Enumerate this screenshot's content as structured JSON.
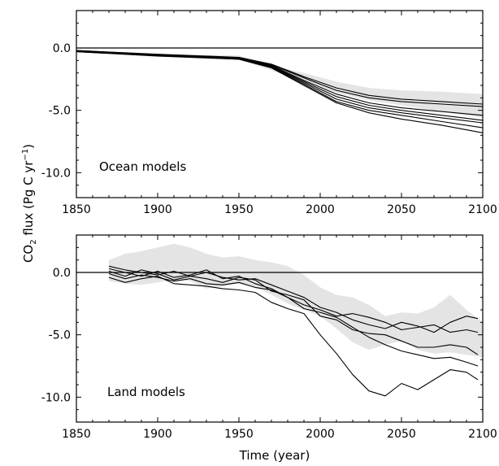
{
  "figure": {
    "ylabel_main": "CO",
    "ylabel_sub": "2",
    "ylabel_rest": " flux  (Pg C yr",
    "ylabel_sup": "−1",
    "ylabel_close": ")",
    "xlabel": "Time  (year)"
  },
  "colors": {
    "line": "#000000",
    "band": "#e4e4e4",
    "frame": "#000000"
  },
  "chart_data": [
    {
      "type": "line",
      "title": "",
      "annotation": "Ocean models",
      "xlabel": "",
      "ylabel": "",
      "xlim": [
        1850,
        2100
      ],
      "ylim": [
        -12,
        3
      ],
      "x_ticks": [
        1850,
        1900,
        1950,
        2000,
        2050,
        2100
      ],
      "y_ticks": [
        0.0,
        -5.0,
        -10.0
      ],
      "y_tick_labels": [
        "0.0",
        "-5.0",
        "-10.0"
      ],
      "reference_line": 0,
      "grid": false,
      "band": {
        "x": [
          1850,
          1900,
          1950,
          1970,
          1990,
          2010,
          2030,
          2050,
          2075,
          2100
        ],
        "upper": [
          -0.2,
          -0.5,
          -0.6,
          -1.4,
          -2.0,
          -2.7,
          -3.2,
          -3.4,
          -3.5,
          -3.7
        ],
        "lower": [
          -0.3,
          -0.7,
          -0.9,
          -1.8,
          -2.7,
          -3.6,
          -4.2,
          -4.6,
          -5.1,
          -5.6
        ]
      },
      "series": [
        {
          "x": [
            1850,
            1900,
            1950,
            1970,
            1990,
            2010,
            2030,
            2050,
            2075,
            2100
          ],
          "values": [
            -0.2,
            -0.5,
            -0.75,
            -1.3,
            -2.3,
            -3.2,
            -3.8,
            -4.1,
            -4.3,
            -4.5
          ]
        },
        {
          "x": [
            1850,
            1900,
            1950,
            1970,
            1990,
            2010,
            2030,
            2050,
            2075,
            2100
          ],
          "values": [
            -0.2,
            -0.55,
            -0.8,
            -1.35,
            -2.4,
            -3.4,
            -4.0,
            -4.3,
            -4.5,
            -4.7
          ]
        },
        {
          "x": [
            1850,
            1900,
            1950,
            1970,
            1990,
            2010,
            2030,
            2050,
            2075,
            2100
          ],
          "values": [
            -0.25,
            -0.55,
            -0.8,
            -1.4,
            -2.6,
            -3.7,
            -4.4,
            -4.8,
            -5.1,
            -5.4
          ]
        },
        {
          "x": [
            1850,
            1900,
            1950,
            1970,
            1990,
            2010,
            2030,
            2050,
            2075,
            2100
          ],
          "values": [
            -0.25,
            -0.55,
            -0.85,
            -1.45,
            -2.7,
            -3.9,
            -4.6,
            -5.0,
            -5.4,
            -5.8
          ]
        },
        {
          "x": [
            1850,
            1900,
            1950,
            1970,
            1990,
            2010,
            2030,
            2050,
            2075,
            2100
          ],
          "values": [
            -0.25,
            -0.6,
            -0.85,
            -1.5,
            -2.8,
            -4.1,
            -4.8,
            -5.2,
            -5.6,
            -6.0
          ]
        },
        {
          "x": [
            1850,
            1900,
            1950,
            1970,
            1990,
            2010,
            2030,
            2050,
            2075,
            2100
          ],
          "values": [
            -0.3,
            -0.6,
            -0.9,
            -1.55,
            -2.9,
            -4.3,
            -5.0,
            -5.4,
            -5.9,
            -6.4
          ]
        },
        {
          "x": [
            1850,
            1900,
            1950,
            1970,
            1990,
            2010,
            2030,
            2050,
            2075,
            2100
          ],
          "values": [
            -0.3,
            -0.65,
            -0.9,
            -1.6,
            -3.0,
            -4.4,
            -5.2,
            -5.7,
            -6.2,
            -6.8
          ]
        }
      ]
    },
    {
      "type": "line",
      "title": "",
      "annotation": "Land models",
      "xlabel": "Time  (year)",
      "ylabel": "",
      "xlim": [
        1850,
        2100
      ],
      "ylim": [
        -12,
        3
      ],
      "x_ticks": [
        1850,
        1900,
        1950,
        2000,
        2050,
        2100
      ],
      "y_ticks": [
        0.0,
        -5.0,
        -10.0
      ],
      "y_tick_labels": [
        "0.0",
        "-5.0",
        "-10.0"
      ],
      "reference_line": 0,
      "grid": false,
      "band": {
        "x": [
          1870,
          1880,
          1890,
          1900,
          1910,
          1920,
          1930,
          1940,
          1950,
          1960,
          1970,
          1980,
          1990,
          2000,
          2010,
          2020,
          2030,
          2040,
          2050,
          2060,
          2070,
          2080,
          2090,
          2100
        ],
        "upper": [
          1.0,
          1.5,
          1.7,
          2.0,
          2.3,
          2.0,
          1.5,
          1.2,
          1.3,
          1.0,
          0.8,
          0.5,
          -0.2,
          -1.2,
          -1.8,
          -2.0,
          -2.6,
          -3.5,
          -3.2,
          -3.3,
          -2.8,
          -1.8,
          -3.0,
          -4.0
        ],
        "lower": [
          -0.7,
          -0.9,
          -1.0,
          -0.8,
          -0.6,
          -0.7,
          -1.3,
          -1.1,
          -0.9,
          -1.2,
          -1.8,
          -2.5,
          -3.0,
          -3.5,
          -4.5,
          -5.6,
          -6.2,
          -5.8,
          -5.5,
          -6.2,
          -6.5,
          -6.4,
          -6.6,
          -6.8
        ]
      },
      "series": [
        {
          "x": [
            1870,
            1880,
            1890,
            1900,
            1910,
            1920,
            1930,
            1940,
            1950,
            1960,
            1970,
            1980,
            1990,
            2000,
            2010,
            2020,
            2030,
            2040,
            2050,
            2060,
            2070,
            2080,
            2090,
            2097
          ],
          "values": [
            0.5,
            0.2,
            0.0,
            -0.2,
            0.1,
            -0.3,
            0.0,
            -0.4,
            -0.6,
            -0.5,
            -1.0,
            -1.5,
            -2.0,
            -2.8,
            -3.2,
            -3.8,
            -4.2,
            -4.5,
            -4.0,
            -4.3,
            -4.8,
            -4.0,
            -3.5,
            -3.7
          ]
        },
        {
          "x": [
            1870,
            1880,
            1890,
            1900,
            1910,
            1920,
            1930,
            1940,
            1950,
            1960,
            1970,
            1980,
            1990,
            2000,
            2010,
            2020,
            2030,
            2040,
            2050,
            2060,
            2070,
            2080,
            2090,
            2097
          ],
          "values": [
            0.3,
            0.0,
            -0.3,
            0.1,
            -0.4,
            -0.2,
            0.2,
            -0.5,
            -0.3,
            -0.9,
            -1.3,
            -2.0,
            -2.6,
            -3.0,
            -3.5,
            -3.3,
            -3.6,
            -4.0,
            -4.6,
            -4.4,
            -4.2,
            -4.8,
            -4.6,
            -4.8
          ]
        },
        {
          "x": [
            1870,
            1880,
            1890,
            1900,
            1910,
            1920,
            1930,
            1940,
            1950,
            1960,
            1970,
            1980,
            1990,
            2000,
            2010,
            2020,
            2030,
            2040,
            2050,
            2060,
            2070,
            2080,
            2090,
            2097
          ],
          "values": [
            0.1,
            -0.3,
            0.2,
            -0.1,
            -0.6,
            -0.3,
            -0.5,
            -0.8,
            -0.4,
            -0.6,
            -1.5,
            -1.8,
            -2.2,
            -3.5,
            -3.8,
            -4.6,
            -4.9,
            -5.0,
            -5.5,
            -6.0,
            -6.0,
            -5.8,
            -6.0,
            -6.6
          ]
        },
        {
          "x": [
            1870,
            1880,
            1890,
            1900,
            1910,
            1920,
            1930,
            1940,
            1950,
            1960,
            1970,
            1980,
            1990,
            2000,
            2010,
            2020,
            2030,
            2040,
            2050,
            2060,
            2070,
            2080,
            2090,
            2097
          ],
          "values": [
            -0.1,
            -0.5,
            -0.2,
            -0.4,
            -0.7,
            -0.5,
            -0.9,
            -1.0,
            -0.8,
            -1.2,
            -1.4,
            -2.0,
            -2.9,
            -3.2,
            -3.6,
            -4.4,
            -5.2,
            -5.8,
            -6.3,
            -6.6,
            -6.9,
            -6.8,
            -7.2,
            -7.5
          ]
        },
        {
          "x": [
            1870,
            1880,
            1890,
            1900,
            1910,
            1920,
            1930,
            1940,
            1950,
            1960,
            1970,
            1980,
            1990,
            2000,
            2010,
            2020,
            2030,
            2040,
            2050,
            2060,
            2070,
            2080,
            2090,
            2097
          ],
          "values": [
            -0.4,
            -0.8,
            -0.5,
            -0.3,
            -0.9,
            -1.0,
            -1.1,
            -1.3,
            -1.4,
            -1.6,
            -2.4,
            -2.9,
            -3.3,
            -5.0,
            -6.5,
            -8.2,
            -9.5,
            -9.9,
            -8.9,
            -9.4,
            -8.6,
            -7.8,
            -8.0,
            -8.6
          ]
        }
      ]
    }
  ]
}
